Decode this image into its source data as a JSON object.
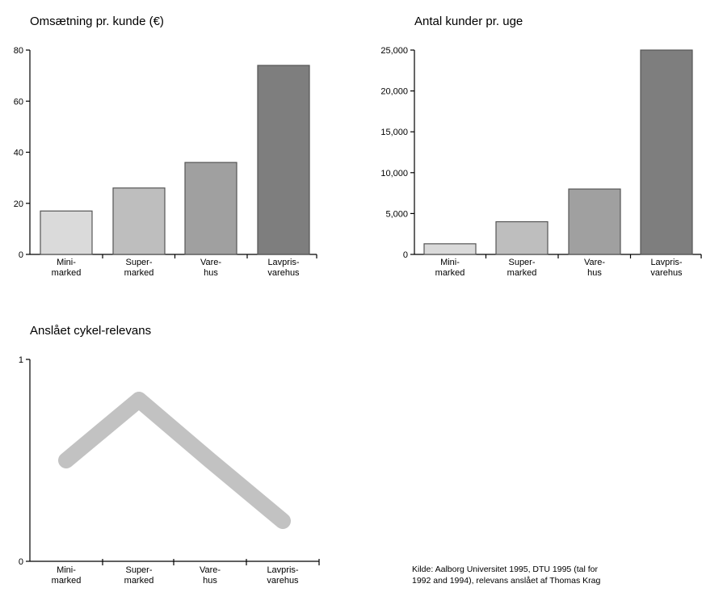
{
  "chart_data": [
    {
      "type": "bar",
      "title": "Omsætning pr. kunde (€)",
      "categories": [
        [
          "Mini-",
          "marked"
        ],
        [
          "Super-",
          "marked"
        ],
        [
          "Vare-",
          "hus"
        ],
        [
          "Lavpris-",
          "varehus"
        ]
      ],
      "values": [
        17,
        26,
        36,
        74
      ],
      "yticks": [
        "0",
        "20",
        "40",
        "60",
        "80"
      ],
      "ylim": [
        0,
        80
      ],
      "colors": [
        "#dadada",
        "#bebebe",
        "#a0a0a0",
        "#7e7e7e"
      ],
      "grid": false
    },
    {
      "type": "bar",
      "title": "Antal kunder pr. uge",
      "categories": [
        [
          "Mini-",
          "marked"
        ],
        [
          "Super-",
          "marked"
        ],
        [
          "Vare-",
          "hus"
        ],
        [
          "Lavpris-",
          "varehus"
        ]
      ],
      "values": [
        1300,
        4000,
        8000,
        25000
      ],
      "yticks": [
        "0",
        "5,000",
        "10,000",
        "15,000",
        "20,000",
        "25,000"
      ],
      "ylim": [
        0,
        25000
      ],
      "colors": [
        "#dadada",
        "#bebebe",
        "#a0a0a0",
        "#7e7e7e"
      ],
      "grid": false
    },
    {
      "type": "line",
      "title": "Anslået cykel-relevans",
      "categories": [
        [
          "Mini-",
          "marked"
        ],
        [
          "Super-",
          "marked"
        ],
        [
          "Vare-",
          "hus"
        ],
        [
          "Lavpris-",
          "varehus"
        ]
      ],
      "values": [
        0.5,
        0.8,
        0.5,
        0.2
      ],
      "yticks": [
        "0",
        "1"
      ],
      "ylim": [
        0,
        1
      ],
      "line_color": "#c2c2c2",
      "grid": false
    }
  ],
  "source": {
    "lines": [
      "Kilde: Aalborg Universitet 1995, DTU 1995 (tal for",
      "1992 and 1994), relevans anslået af Thomas Krag"
    ]
  }
}
